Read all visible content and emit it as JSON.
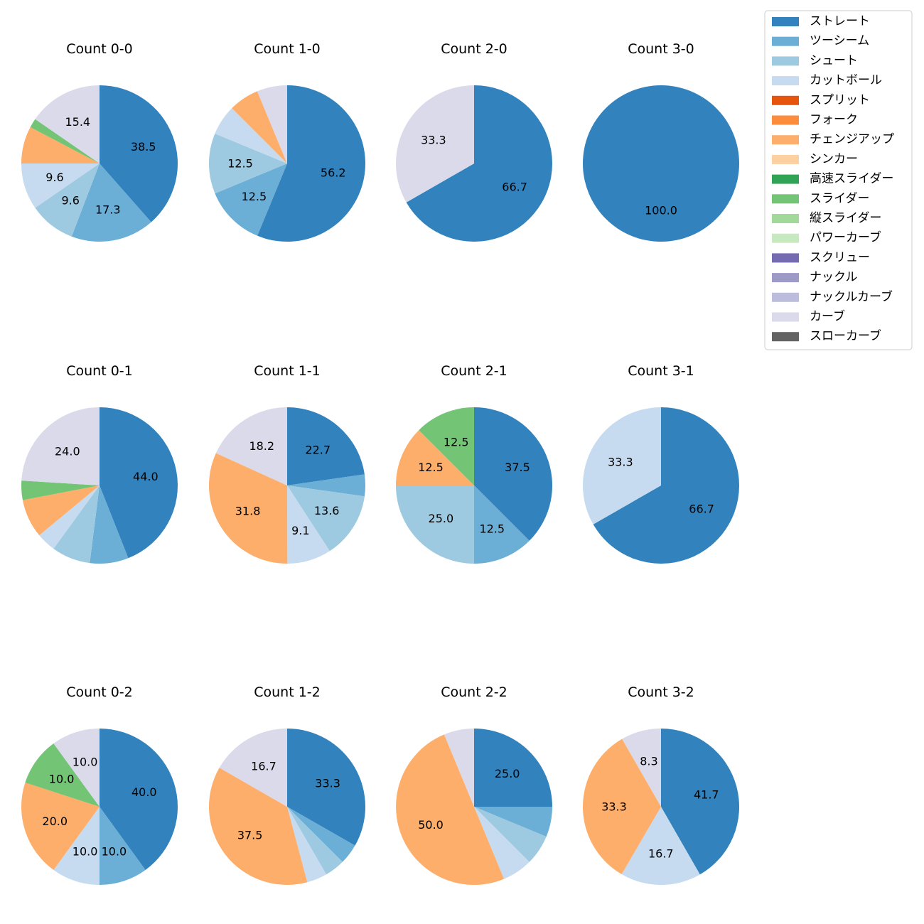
{
  "chart_data": {
    "type": "pie",
    "legend_position": "top-right",
    "legend": [
      {
        "name": "ストレート",
        "color": "#3182bd"
      },
      {
        "name": "ツーシーム",
        "color": "#6baed6"
      },
      {
        "name": "シュート",
        "color": "#9ecae1"
      },
      {
        "name": "カットボール",
        "color": "#c6dbef"
      },
      {
        "name": "スプリット",
        "color": "#e6550d"
      },
      {
        "name": "フォーク",
        "color": "#fd8d3c"
      },
      {
        "name": "チェンジアップ",
        "color": "#fdae6b"
      },
      {
        "name": "シンカー",
        "color": "#fdd0a2"
      },
      {
        "name": "高速スライダー",
        "color": "#31a354"
      },
      {
        "name": "スライダー",
        "color": "#74c476"
      },
      {
        "name": "縦スライダー",
        "color": "#a1d99b"
      },
      {
        "name": "パワーカーブ",
        "color": "#c7e9c0"
      },
      {
        "name": "スクリュー",
        "color": "#756bb1"
      },
      {
        "name": "ナックル",
        "color": "#9e9ac8"
      },
      {
        "name": "ナックルカーブ",
        "color": "#bcbddc"
      },
      {
        "name": "カーブ",
        "color": "#dadaeb"
      },
      {
        "name": "スローカーブ",
        "color": "#636363"
      }
    ],
    "pies": [
      {
        "title": "Count 0-0",
        "slices": [
          {
            "pitch": "ストレート",
            "value": 38.5,
            "label": "38.5"
          },
          {
            "pitch": "ツーシーム",
            "value": 17.3,
            "label": "17.3"
          },
          {
            "pitch": "シュート",
            "value": 9.6,
            "label": "9.6"
          },
          {
            "pitch": "カットボール",
            "value": 9.6,
            "label": "9.6"
          },
          {
            "pitch": "チェンジアップ",
            "value": 7.7,
            "label": ""
          },
          {
            "pitch": "スライダー",
            "value": 1.9,
            "label": ""
          },
          {
            "pitch": "カーブ",
            "value": 15.4,
            "label": "15.4"
          }
        ]
      },
      {
        "title": "Count 1-0",
        "slices": [
          {
            "pitch": "ストレート",
            "value": 56.2,
            "label": "56.2"
          },
          {
            "pitch": "ツーシーム",
            "value": 12.5,
            "label": "12.5"
          },
          {
            "pitch": "シュート",
            "value": 12.5,
            "label": "12.5"
          },
          {
            "pitch": "カットボール",
            "value": 6.25,
            "label": ""
          },
          {
            "pitch": "チェンジアップ",
            "value": 6.25,
            "label": ""
          },
          {
            "pitch": "カーブ",
            "value": 6.25,
            "label": ""
          }
        ]
      },
      {
        "title": "Count 2-0",
        "slices": [
          {
            "pitch": "ストレート",
            "value": 66.7,
            "label": "66.7"
          },
          {
            "pitch": "カーブ",
            "value": 33.3,
            "label": "33.3"
          }
        ]
      },
      {
        "title": "Count 3-0",
        "slices": [
          {
            "pitch": "ストレート",
            "value": 100.0,
            "label": "100.0"
          }
        ]
      },
      {
        "title": "Count 0-1",
        "slices": [
          {
            "pitch": "ストレート",
            "value": 44.0,
            "label": "44.0"
          },
          {
            "pitch": "ツーシーム",
            "value": 8.0,
            "label": ""
          },
          {
            "pitch": "シュート",
            "value": 8.0,
            "label": ""
          },
          {
            "pitch": "カットボール",
            "value": 4.0,
            "label": ""
          },
          {
            "pitch": "チェンジアップ",
            "value": 8.0,
            "label": ""
          },
          {
            "pitch": "スライダー",
            "value": 4.0,
            "label": ""
          },
          {
            "pitch": "カーブ",
            "value": 24.0,
            "label": "24.0"
          }
        ]
      },
      {
        "title": "Count 1-1",
        "slices": [
          {
            "pitch": "ストレート",
            "value": 22.7,
            "label": "22.7"
          },
          {
            "pitch": "ツーシーム",
            "value": 4.5,
            "label": ""
          },
          {
            "pitch": "シュート",
            "value": 13.6,
            "label": "13.6"
          },
          {
            "pitch": "カットボール",
            "value": 9.1,
            "label": "9.1"
          },
          {
            "pitch": "チェンジアップ",
            "value": 31.8,
            "label": "31.8"
          },
          {
            "pitch": "カーブ",
            "value": 18.2,
            "label": "18.2"
          }
        ]
      },
      {
        "title": "Count 2-1",
        "slices": [
          {
            "pitch": "ストレート",
            "value": 37.5,
            "label": "37.5"
          },
          {
            "pitch": "ツーシーム",
            "value": 12.5,
            "label": "12.5"
          },
          {
            "pitch": "シュート",
            "value": 25.0,
            "label": "25.0"
          },
          {
            "pitch": "チェンジアップ",
            "value": 12.5,
            "label": "12.5"
          },
          {
            "pitch": "スライダー",
            "value": 12.5,
            "label": "12.5"
          }
        ]
      },
      {
        "title": "Count 3-1",
        "slices": [
          {
            "pitch": "ストレート",
            "value": 66.7,
            "label": "66.7"
          },
          {
            "pitch": "カットボール",
            "value": 33.3,
            "label": "33.3"
          }
        ]
      },
      {
        "title": "Count 0-2",
        "slices": [
          {
            "pitch": "ストレート",
            "value": 40.0,
            "label": "40.0"
          },
          {
            "pitch": "ツーシーム",
            "value": 10.0,
            "label": "10.0"
          },
          {
            "pitch": "カットボール",
            "value": 10.0,
            "label": "10.0"
          },
          {
            "pitch": "チェンジアップ",
            "value": 20.0,
            "label": "20.0"
          },
          {
            "pitch": "スライダー",
            "value": 10.0,
            "label": "10.0"
          },
          {
            "pitch": "カーブ",
            "value": 10.0,
            "label": "10.0"
          }
        ]
      },
      {
        "title": "Count 1-2",
        "slices": [
          {
            "pitch": "ストレート",
            "value": 33.3,
            "label": "33.3"
          },
          {
            "pitch": "ツーシーム",
            "value": 4.2,
            "label": ""
          },
          {
            "pitch": "シュート",
            "value": 4.2,
            "label": ""
          },
          {
            "pitch": "カットボール",
            "value": 4.2,
            "label": ""
          },
          {
            "pitch": "チェンジアップ",
            "value": 37.5,
            "label": "37.5"
          },
          {
            "pitch": "カーブ",
            "value": 16.7,
            "label": "16.7"
          }
        ]
      },
      {
        "title": "Count 2-2",
        "slices": [
          {
            "pitch": "ストレート",
            "value": 25.0,
            "label": "25.0"
          },
          {
            "pitch": "ツーシーム",
            "value": 6.25,
            "label": ""
          },
          {
            "pitch": "シュート",
            "value": 6.25,
            "label": ""
          },
          {
            "pitch": "カットボール",
            "value": 6.25,
            "label": ""
          },
          {
            "pitch": "チェンジアップ",
            "value": 50.0,
            "label": "50.0"
          },
          {
            "pitch": "カーブ",
            "value": 6.25,
            "label": ""
          }
        ]
      },
      {
        "title": "Count 3-2",
        "slices": [
          {
            "pitch": "ストレート",
            "value": 41.7,
            "label": "41.7"
          },
          {
            "pitch": "カットボール",
            "value": 16.7,
            "label": "16.7"
          },
          {
            "pitch": "チェンジアップ",
            "value": 33.3,
            "label": "33.3"
          },
          {
            "pitch": "カーブ",
            "value": 8.3,
            "label": "8.3"
          }
        ]
      }
    ]
  }
}
